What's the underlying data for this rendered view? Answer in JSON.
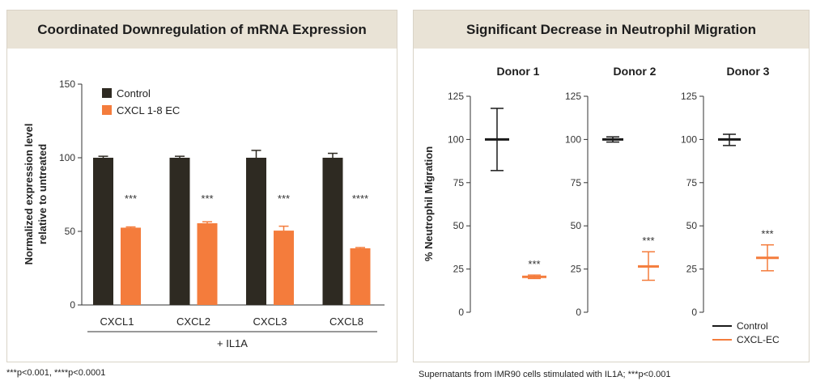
{
  "chart_data": [
    {
      "type": "bar",
      "title": "Coordinated Downregulation of mRNA Expression",
      "ylabel": "Normalized expression level relative to untreated",
      "xlabel": "+ IL1A",
      "ylim": [
        0,
        150
      ],
      "yticks": [
        0,
        50,
        100,
        150
      ],
      "categories": [
        "CXCL1",
        "CXCL2",
        "CXCL3",
        "CXCL8"
      ],
      "series": [
        {
          "name": "Control",
          "color": "#2e2a22",
          "values": [
            100,
            100,
            100,
            100
          ],
          "errors": [
            1,
            1,
            5,
            3
          ]
        },
        {
          "name": "CXCL 1-8 EC",
          "color": "#f47c3c",
          "values": [
            52.5,
            55.5,
            50.5,
            38.5
          ],
          "errors": [
            0.5,
            1,
            3,
            0.5
          ]
        }
      ],
      "significance": [
        "***",
        "***",
        "***",
        "****"
      ],
      "legend": "top-left",
      "footnote": "***p<0.001, ****p<0.0001"
    },
    {
      "type": "scatter",
      "title": "Significant Decrease in Neutrophil Migration",
      "ylabel": "% Neutrophil Migration",
      "ylim": [
        0,
        125
      ],
      "yticks": [
        0,
        25,
        50,
        75,
        100,
        125
      ],
      "panels": [
        {
          "name": "Donor 1",
          "control": {
            "mean": 100,
            "low": 82,
            "high": 118
          },
          "treated": {
            "mean": 20.5,
            "low": 19.5,
            "high": 21.5
          },
          "significance": "***"
        },
        {
          "name": "Donor 2",
          "control": {
            "mean": 100,
            "low": 98.5,
            "high": 101.5
          },
          "treated": {
            "mean": 26.5,
            "low": 18.5,
            "high": 35
          },
          "significance": "***"
        },
        {
          "name": "Donor 3",
          "control": {
            "mean": 100,
            "low": 96.5,
            "high": 103
          },
          "treated": {
            "mean": 31.5,
            "low": 24,
            "high": 39
          },
          "significance": "***"
        }
      ],
      "series": [
        {
          "name": "Control",
          "color": "#1a1a1a"
        },
        {
          "name": "CXCL-EC",
          "color": "#f47c3c"
        }
      ],
      "legend": "bottom-right",
      "footnote": "Supernatants from IMR90 cells stimulated with IL1A; ***p<0.001"
    }
  ]
}
